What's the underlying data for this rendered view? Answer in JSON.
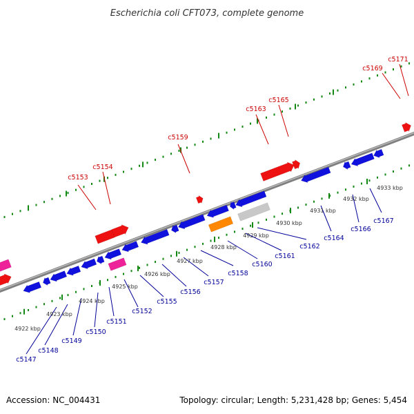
{
  "title": "Escherichia coli CFT073, complete genome",
  "footer": {
    "accession": "Accession: NC_004431",
    "topology": "Topology: circular; Length: 5,231,428 bp; Genes: 5,454"
  },
  "colors": {
    "forward_label": "#cc0000",
    "reverse_label": "#000099",
    "forward_gene": "#ee1111",
    "reverse_gene": "#1111dd",
    "pink_gene": "#ee2299",
    "orange_gene": "#ff8800",
    "gray_gene": "#c8c8c8",
    "backbone": "#808080",
    "tick": "#118811"
  },
  "kbp_labels": [
    "4922 kbp",
    "4923 kbp",
    "4924 kbp",
    "4925 kbp",
    "4926 kbp",
    "4927 kbp",
    "4928 kbp",
    "4929 kbp",
    "4930 kbp",
    "4931 kbp",
    "4932 kbp",
    "4933 kbp"
  ],
  "forward_gene_labels": [
    "c5153",
    "c5154",
    "c5159",
    "c5163",
    "c5165",
    "c5169",
    "c5171"
  ],
  "reverse_gene_labels": [
    "c5147",
    "c5148",
    "c5149",
    "c5150",
    "c5151",
    "c5152",
    "c5155",
    "c5156",
    "c5157",
    "c5158",
    "c5160",
    "c5161",
    "c5162",
    "c5164",
    "c5166",
    "c5167"
  ]
}
